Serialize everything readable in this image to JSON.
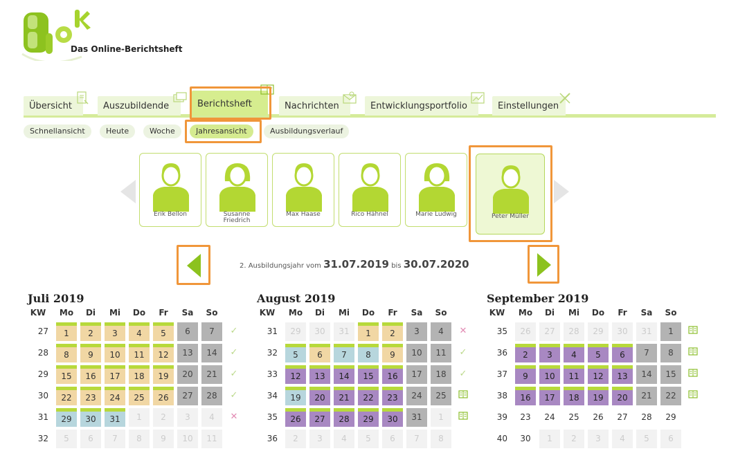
{
  "brand": {
    "subtitle": "Das Online-Berichtsheft"
  },
  "main_tabs": [
    {
      "label": "Übersicht",
      "active": false
    },
    {
      "label": "Auszubildende",
      "active": false
    },
    {
      "label": "Berichtsheft",
      "active": true
    },
    {
      "label": "Nachrichten",
      "active": false
    },
    {
      "label": "Entwicklungsportfolio",
      "active": false
    },
    {
      "label": "Einstellungen",
      "active": false
    }
  ],
  "sub_tabs": [
    {
      "label": "Schnellansicht",
      "active": false
    },
    {
      "label": "Heute",
      "active": false
    },
    {
      "label": "Woche",
      "active": false
    },
    {
      "label": "Jahresansicht",
      "active": true
    },
    {
      "label": "Ausbildungsverlauf",
      "active": false
    }
  ],
  "people": [
    {
      "name": "Erik Bellon",
      "gender": "male"
    },
    {
      "name": "Susanne Friedrich",
      "gender": "female"
    },
    {
      "name": "Max Haase",
      "gender": "male"
    },
    {
      "name": "Rico Hähnel",
      "gender": "male"
    },
    {
      "name": "Marie Ludwig",
      "gender": "female"
    },
    {
      "name": "Peter Müller",
      "gender": "male",
      "selected": true
    }
  ],
  "year": {
    "prefix": "2. Ausbildungsjahr vom",
    "start": "31.07.2019",
    "middle": "bis",
    "end": "30.07.2020"
  },
  "weekday_header": {
    "kw": "KW",
    "days": [
      "Mo",
      "Di",
      "Mi",
      "Do",
      "Fr",
      "Sa",
      "So"
    ]
  },
  "months": [
    {
      "title": "Juli 2019",
      "weeks": [
        {
          "kw": "27",
          "mark": "ok",
          "days": [
            [
              "1",
              "tan"
            ],
            [
              "2",
              "tan"
            ],
            [
              "3",
              "tan"
            ],
            [
              "4",
              "tan"
            ],
            [
              "5",
              "tan"
            ],
            [
              "6",
              "gray"
            ],
            [
              "7",
              "gray"
            ]
          ]
        },
        {
          "kw": "28",
          "mark": "ok",
          "days": [
            [
              "8",
              "tan"
            ],
            [
              "9",
              "tan"
            ],
            [
              "10",
              "tan"
            ],
            [
              "11",
              "tan"
            ],
            [
              "12",
              "tan"
            ],
            [
              "13",
              "gray"
            ],
            [
              "14",
              "gray"
            ]
          ]
        },
        {
          "kw": "29",
          "mark": "ok",
          "days": [
            [
              "15",
              "tan"
            ],
            [
              "16",
              "tan"
            ],
            [
              "17",
              "tan"
            ],
            [
              "18",
              "tan"
            ],
            [
              "19",
              "tan"
            ],
            [
              "20",
              "gray"
            ],
            [
              "21",
              "gray"
            ]
          ]
        },
        {
          "kw": "30",
          "mark": "ok",
          "days": [
            [
              "22",
              "tan"
            ],
            [
              "23",
              "tan"
            ],
            [
              "24",
              "tan"
            ],
            [
              "25",
              "tan"
            ],
            [
              "26",
              "tan"
            ],
            [
              "27",
              "gray"
            ],
            [
              "28",
              "gray"
            ]
          ]
        },
        {
          "kw": "31",
          "mark": "x",
          "days": [
            [
              "29",
              "blue"
            ],
            [
              "30",
              "blue"
            ],
            [
              "31",
              "blue"
            ],
            [
              "1",
              "ghost"
            ],
            [
              "2",
              "ghost"
            ],
            [
              "3",
              "ghost"
            ],
            [
              "4",
              "ghost"
            ]
          ]
        },
        {
          "kw": "32",
          "mark": "",
          "days": [
            [
              "5",
              "ghost"
            ],
            [
              "6",
              "ghost"
            ],
            [
              "7",
              "ghost"
            ],
            [
              "8",
              "ghost"
            ],
            [
              "9",
              "ghost"
            ],
            [
              "10",
              "ghost"
            ],
            [
              "11",
              "ghost"
            ]
          ]
        }
      ]
    },
    {
      "title": "August 2019",
      "weeks": [
        {
          "kw": "31",
          "mark": "x",
          "days": [
            [
              "29",
              "ghost"
            ],
            [
              "30",
              "ghost"
            ],
            [
              "31",
              "ghost"
            ],
            [
              "1",
              "tan"
            ],
            [
              "2",
              "tan"
            ],
            [
              "3",
              "gray"
            ],
            [
              "4",
              "gray"
            ]
          ]
        },
        {
          "kw": "32",
          "mark": "ok",
          "days": [
            [
              "5",
              "blue"
            ],
            [
              "6",
              "tan"
            ],
            [
              "7",
              "blue"
            ],
            [
              "8",
              "blue"
            ],
            [
              "9",
              "tan"
            ],
            [
              "10",
              "gray"
            ],
            [
              "11",
              "gray"
            ]
          ]
        },
        {
          "kw": "33",
          "mark": "ok",
          "days": [
            [
              "12",
              "purple"
            ],
            [
              "13",
              "purple"
            ],
            [
              "14",
              "purple"
            ],
            [
              "15",
              "purple"
            ],
            [
              "16",
              "purple"
            ],
            [
              "17",
              "gray"
            ],
            [
              "18",
              "gray"
            ]
          ]
        },
        {
          "kw": "34",
          "mark": "book",
          "days": [
            [
              "19",
              "blue"
            ],
            [
              "20",
              "purple"
            ],
            [
              "21",
              "purple"
            ],
            [
              "22",
              "purple"
            ],
            [
              "23",
              "purple"
            ],
            [
              "24",
              "gray"
            ],
            [
              "25",
              "gray"
            ]
          ]
        },
        {
          "kw": "35",
          "mark": "book",
          "days": [
            [
              "26",
              "purple"
            ],
            [
              "27",
              "purple"
            ],
            [
              "28",
              "purple"
            ],
            [
              "29",
              "purple"
            ],
            [
              "30",
              "purple"
            ],
            [
              "31",
              "gray"
            ],
            [
              "1",
              "ghost"
            ]
          ]
        },
        {
          "kw": "36",
          "mark": "",
          "days": [
            [
              "2",
              "ghost"
            ],
            [
              "3",
              "ghost"
            ],
            [
              "4",
              "ghost"
            ],
            [
              "5",
              "ghost"
            ],
            [
              "6",
              "ghost"
            ],
            [
              "7",
              "ghost"
            ],
            [
              "8",
              "ghost"
            ]
          ]
        }
      ]
    },
    {
      "title": "September 2019",
      "weeks": [
        {
          "kw": "35",
          "mark": "book",
          "days": [
            [
              "26",
              "ghost"
            ],
            [
              "27",
              "ghost"
            ],
            [
              "28",
              "ghost"
            ],
            [
              "29",
              "ghost"
            ],
            [
              "30",
              "ghost"
            ],
            [
              "31",
              "ghost"
            ],
            [
              "1",
              "gray"
            ]
          ]
        },
        {
          "kw": "36",
          "mark": "book",
          "days": [
            [
              "2",
              "purple"
            ],
            [
              "3",
              "purple"
            ],
            [
              "4",
              "purple"
            ],
            [
              "5",
              "purple"
            ],
            [
              "6",
              "purple"
            ],
            [
              "7",
              "gray"
            ],
            [
              "8",
              "gray"
            ]
          ]
        },
        {
          "kw": "37",
          "mark": "book",
          "days": [
            [
              "9",
              "purple"
            ],
            [
              "10",
              "purple"
            ],
            [
              "11",
              "purple"
            ],
            [
              "12",
              "purple"
            ],
            [
              "13",
              "purple"
            ],
            [
              "14",
              "gray"
            ],
            [
              "15",
              "gray"
            ]
          ]
        },
        {
          "kw": "38",
          "mark": "book",
          "days": [
            [
              "16",
              "purple"
            ],
            [
              "17",
              "purple"
            ],
            [
              "18",
              "purple"
            ],
            [
              "19",
              "purple"
            ],
            [
              "20",
              "purple"
            ],
            [
              "21",
              "gray"
            ],
            [
              "22",
              "gray"
            ]
          ]
        },
        {
          "kw": "39",
          "mark": "",
          "days": [
            [
              "23",
              "plain"
            ],
            [
              "24",
              "plain"
            ],
            [
              "25",
              "plain"
            ],
            [
              "26",
              "plain"
            ],
            [
              "27",
              "plain"
            ],
            [
              "28",
              "plain"
            ],
            [
              "29",
              "plain"
            ]
          ]
        },
        {
          "kw": "40",
          "mark": "",
          "days": [
            [
              "30",
              "plain"
            ],
            [
              "1",
              "ghost"
            ],
            [
              "2",
              "ghost"
            ],
            [
              "3",
              "ghost"
            ],
            [
              "4",
              "ghost"
            ],
            [
              "5",
              "ghost"
            ],
            [
              "6",
              "ghost"
            ]
          ]
        }
      ]
    }
  ],
  "colors": {
    "accent_green": "#b7d93b",
    "tab_bg": "#edf6da",
    "tab_active": "#d6ed8f",
    "highlight_orange": "#f0963a",
    "day_tan": "#f1d7a4",
    "day_blue": "#b7d6dd",
    "day_purple": "#a888c2",
    "day_weekend": "#b3b3b3"
  }
}
